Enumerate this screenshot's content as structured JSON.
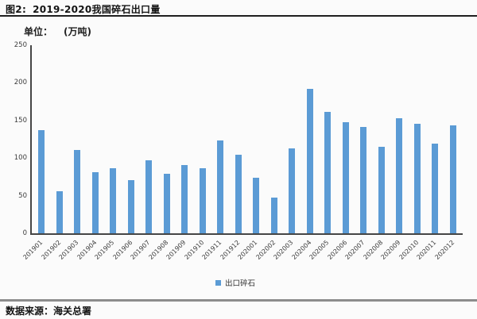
{
  "header": {
    "figure_label": "图2:",
    "title": "2019-2020我国碎石出口量",
    "unit_label": "单位：",
    "unit_value": "(万吨)"
  },
  "chart_data": {
    "type": "bar",
    "title": "2019-2020我国碎石出口量",
    "unit": "万吨",
    "categories": [
      "201901",
      "201902",
      "201903",
      "201904",
      "201905",
      "201906",
      "201907",
      "201908",
      "201909",
      "201910",
      "201911",
      "201912",
      "202001",
      "202002",
      "202003",
      "202004",
      "202005",
      "202006",
      "202007",
      "202008",
      "202009",
      "202010",
      "202011",
      "202012"
    ],
    "values": [
      137,
      56,
      111,
      81,
      87,
      71,
      97,
      79,
      91,
      87,
      123,
      105,
      74,
      48,
      113,
      192,
      161,
      148,
      141,
      115,
      153,
      146,
      119,
      143
    ],
    "xlabel": "",
    "ylabel": "",
    "ylim": [
      0,
      250
    ],
    "yticks": [
      0,
      50,
      100,
      150,
      200,
      250
    ],
    "grid": false,
    "legend": [
      "出口碎石"
    ],
    "legend_position": "bottom",
    "bar_color": "#5B9BD5"
  },
  "legend": {
    "label": "出口碎石"
  },
  "footer": {
    "source": "数据来源：海关总署"
  }
}
